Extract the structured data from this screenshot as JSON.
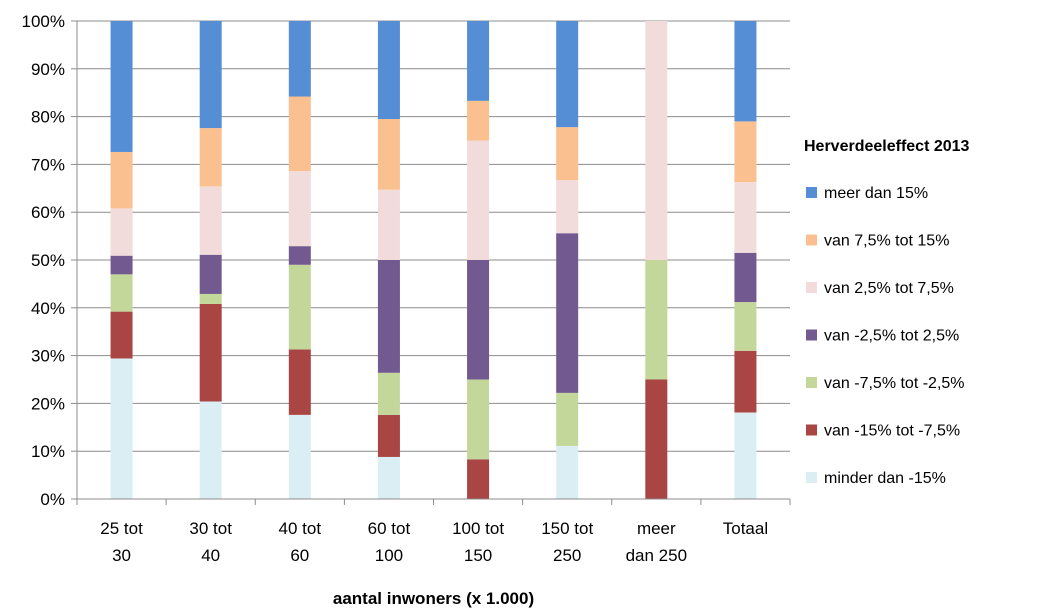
{
  "chart_data": {
    "type": "bar",
    "stacked": true,
    "percent_stacked": true,
    "categories": [
      [
        "25 tot",
        "30"
      ],
      [
        "30 tot",
        "40"
      ],
      [
        "40 tot",
        "60"
      ],
      [
        "60 tot",
        "100"
      ],
      [
        "100 tot",
        "150"
      ],
      [
        "150 tot",
        "250"
      ],
      [
        "meer",
        "dan 250"
      ],
      [
        "Totaal"
      ]
    ],
    "xlabel": "aantal inwoners (x 1.000)",
    "ylabel": "",
    "ylim": [
      0,
      100
    ],
    "yticks": [
      "0%",
      "10%",
      "20%",
      "30%",
      "40%",
      "50%",
      "60%",
      "70%",
      "80%",
      "90%",
      "100%"
    ],
    "grid": true,
    "legend_title": "Herverdeeleffect 2013",
    "legend_position": "right",
    "series": [
      {
        "name": "minder dan -15%",
        "color": "#DAEEF3",
        "values": [
          29.4,
          20.4,
          17.6,
          8.8,
          0,
          11.1,
          0,
          18.1
        ]
      },
      {
        "name": "van -15% tot -7,5%",
        "color": "#A94543",
        "values": [
          9.8,
          20.4,
          13.7,
          8.8,
          8.3,
          0,
          25,
          12.9
        ]
      },
      {
        "name": "van -7,5% tot -2,5%",
        "color": "#C4D79B",
        "values": [
          7.8,
          2.1,
          17.7,
          8.8,
          16.7,
          11.1,
          25,
          10.2
        ]
      },
      {
        "name": "van -2,5% tot 2,5%",
        "color": "#725A90",
        "values": [
          3.9,
          8.2,
          3.9,
          23.6,
          25,
          33.4,
          0,
          10.3
        ]
      },
      {
        "name": "van 2,5% tot 7,5%",
        "color": "#F2DCDB",
        "values": [
          9.9,
          14.3,
          15.7,
          14.7,
          25,
          11.1,
          50,
          14.8
        ]
      },
      {
        "name": "van 7,5% tot 15%",
        "color": "#FAC090",
        "values": [
          11.8,
          12.2,
          15.6,
          14.8,
          8.3,
          11.1,
          0,
          12.7
        ]
      },
      {
        "name": "meer dan 15%",
        "color": "#558ED5",
        "values": [
          27.4,
          22.4,
          15.8,
          20.5,
          16.7,
          22.2,
          0,
          21
        ]
      }
    ]
  }
}
